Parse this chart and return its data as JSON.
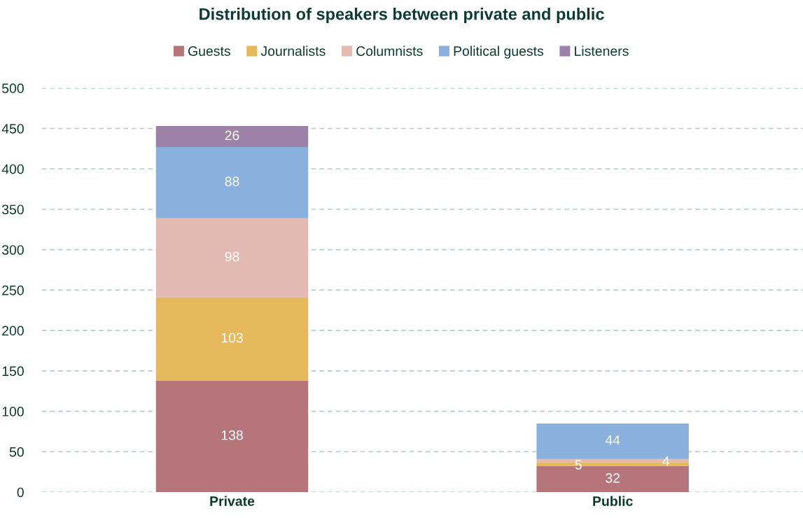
{
  "chart_data": {
    "type": "bar",
    "title": "Distribution of speakers between private and public",
    "categories": [
      "Private",
      "Public"
    ],
    "stacked": true,
    "data_labels": true,
    "grid": "y",
    "legend": "top",
    "ylim": [
      0,
      500
    ],
    "yticks": [
      0,
      50,
      100,
      150,
      200,
      250,
      300,
      350,
      400,
      450,
      500
    ],
    "series": [
      {
        "name": "Guests",
        "color": "#b5757a",
        "values": [
          138,
          32
        ]
      },
      {
        "name": "Journalists",
        "color": "#e5b95c",
        "values": [
          103,
          5
        ]
      },
      {
        "name": "Columnists",
        "color": "#e3bab2",
        "values": [
          98,
          4
        ]
      },
      {
        "name": "Political guests",
        "color": "#8ab0dd",
        "values": [
          88,
          44
        ]
      },
      {
        "name": "Listeners",
        "color": "#9d82a8",
        "values": [
          26,
          null
        ]
      }
    ]
  }
}
